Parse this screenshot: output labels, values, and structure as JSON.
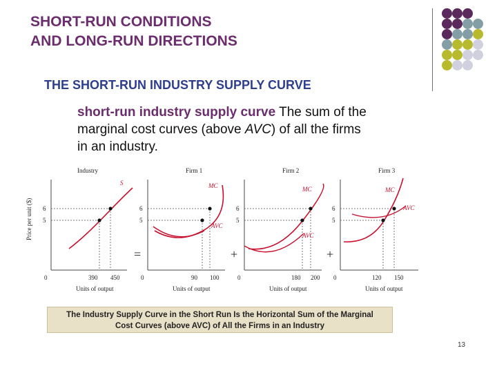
{
  "slide": {
    "title_line1": "SHORT-RUN CONDITIONS",
    "title_line2": "AND LONG-RUN DIRECTIONS",
    "subtitle": "THE SHORT-RUN INDUSTRY SUPPLY CURVE",
    "definition_term": "short-run industry supply curve",
    "definition_text_a": " The sum of the marginal cost curves (above ",
    "definition_abbr": "AVC",
    "definition_text_b": ") of all the firms in an industry.",
    "caption_line1": "The Industry Supply Curve in the Short Run Is the Horizontal Sum of the Marginal",
    "caption_line2": "Cost Curves (above AVC) of All the Firms in an Industry",
    "page_number": "13"
  },
  "decoration": {
    "dot_colors": [
      "#5a2a5c",
      "#839ea4",
      "#b8ba2e",
      "#d0d0de"
    ]
  },
  "figure": {
    "y_axis_label": "Price per unit ($)",
    "x_axis_label": "Units of output",
    "plus_sign": "+",
    "equals_sign": "=",
    "panels": [
      {
        "title": "Industry",
        "curves": [
          "S"
        ],
        "y_ticks": [
          "6",
          "5"
        ],
        "origin": "0",
        "x_ticks": [
          "390",
          "450"
        ]
      },
      {
        "title": "Firm 1",
        "curves": [
          "MC",
          "AVC"
        ],
        "y_ticks": [
          "6",
          "5"
        ],
        "origin": "0",
        "x_ticks": [
          "90",
          "100"
        ]
      },
      {
        "title": "Firm 2",
        "curves": [
          "MC",
          "AVC"
        ],
        "y_ticks": [
          "6",
          "5"
        ],
        "origin": "0",
        "x_ticks": [
          "180",
          "200"
        ]
      },
      {
        "title": "Firm 3",
        "curves": [
          "MC",
          "AVC"
        ],
        "y_ticks": [
          "6",
          "5"
        ],
        "origin": "0",
        "x_ticks": [
          "120",
          "150"
        ]
      }
    ]
  }
}
